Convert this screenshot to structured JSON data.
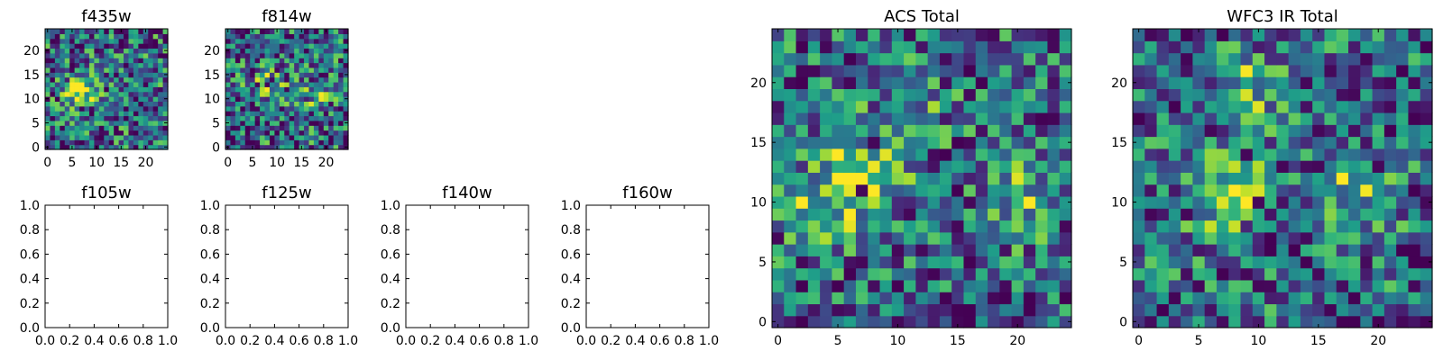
{
  "chart_data": [
    {
      "type": "heatmap",
      "title": "f435w",
      "grid_size": 25,
      "xlim": [
        0,
        25
      ],
      "ylim": [
        0,
        25
      ],
      "x_ticks": [
        "0",
        "5",
        "10",
        "15",
        "20"
      ],
      "y_ticks": [
        "0",
        "5",
        "10",
        "15",
        "20"
      ],
      "colormap": "viridis",
      "seed": 11,
      "peaks": [
        {
          "x": 7,
          "y": 12,
          "amp": 0.55
        }
      ],
      "noise": 0.5
    },
    {
      "type": "heatmap",
      "title": "f814w",
      "grid_size": 25,
      "xlim": [
        0,
        25
      ],
      "ylim": [
        0,
        25
      ],
      "x_ticks": [
        "0",
        "5",
        "10",
        "15",
        "20"
      ],
      "y_ticks": [
        "0",
        "5",
        "10",
        "15",
        "20"
      ],
      "colormap": "viridis",
      "seed": 23,
      "peaks": [
        {
          "x": 8,
          "y": 13,
          "amp": 0.45
        },
        {
          "x": 18,
          "y": 11,
          "amp": 0.3
        }
      ],
      "noise": 0.5
    },
    {
      "type": "empty",
      "title": "f105w",
      "xlim": [
        0,
        1
      ],
      "ylim": [
        0,
        1
      ],
      "x_ticks": [
        "0.0",
        "0.2",
        "0.4",
        "0.6",
        "0.8",
        "1.0"
      ],
      "y_ticks": [
        "0.0",
        "0.2",
        "0.4",
        "0.6",
        "0.8",
        "1.0"
      ]
    },
    {
      "type": "empty",
      "title": "f125w",
      "xlim": [
        0,
        1
      ],
      "ylim": [
        0,
        1
      ],
      "x_ticks": [
        "0.0",
        "0.2",
        "0.4",
        "0.6",
        "0.8",
        "1.0"
      ],
      "y_ticks": [
        "0.0",
        "0.2",
        "0.4",
        "0.6",
        "0.8",
        "1.0"
      ]
    },
    {
      "type": "empty",
      "title": "f140w",
      "xlim": [
        0,
        1
      ],
      "ylim": [
        0,
        1
      ],
      "x_ticks": [
        "0.0",
        "0.2",
        "0.4",
        "0.6",
        "0.8",
        "1.0"
      ],
      "y_ticks": [
        "0.0",
        "0.2",
        "0.4",
        "0.6",
        "0.8",
        "1.0"
      ]
    },
    {
      "type": "empty",
      "title": "f160w",
      "xlim": [
        0,
        1
      ],
      "ylim": [
        0,
        1
      ],
      "x_ticks": [
        "0.0",
        "0.2",
        "0.4",
        "0.6",
        "0.8",
        "1.0"
      ],
      "y_ticks": [
        "0.0",
        "0.2",
        "0.4",
        "0.6",
        "0.8",
        "1.0"
      ]
    },
    {
      "type": "heatmap",
      "title": "ACS Total",
      "grid_size": 25,
      "xlim": [
        0,
        25
      ],
      "ylim": [
        0,
        25
      ],
      "x_ticks": [
        "0",
        "5",
        "10",
        "15",
        "20"
      ],
      "y_ticks": [
        "0",
        "5",
        "10",
        "15",
        "20"
      ],
      "colormap": "viridis",
      "seed": 37,
      "peaks": [
        {
          "x": 7,
          "y": 12,
          "amp": 0.55
        },
        {
          "x": 3,
          "y": 9,
          "amp": 0.35
        },
        {
          "x": 20,
          "y": 10,
          "amp": 0.3
        },
        {
          "x": 11,
          "y": 18,
          "amp": 0.25
        }
      ],
      "noise": 0.45
    },
    {
      "type": "heatmap",
      "title": "WFC3 IR Total",
      "grid_size": 25,
      "xlim": [
        0,
        25
      ],
      "ylim": [
        0,
        25
      ],
      "x_ticks": [
        "0",
        "5",
        "10",
        "15",
        "20"
      ],
      "y_ticks": [
        "0",
        "5",
        "10",
        "15",
        "20"
      ],
      "colormap": "viridis",
      "seed": 53,
      "peaks": [
        {
          "x": 7,
          "y": 11,
          "amp": 0.5
        },
        {
          "x": 18,
          "y": 11,
          "amp": 0.35
        },
        {
          "x": 10,
          "y": 20,
          "amp": 0.3
        }
      ],
      "noise": 0.45
    }
  ]
}
